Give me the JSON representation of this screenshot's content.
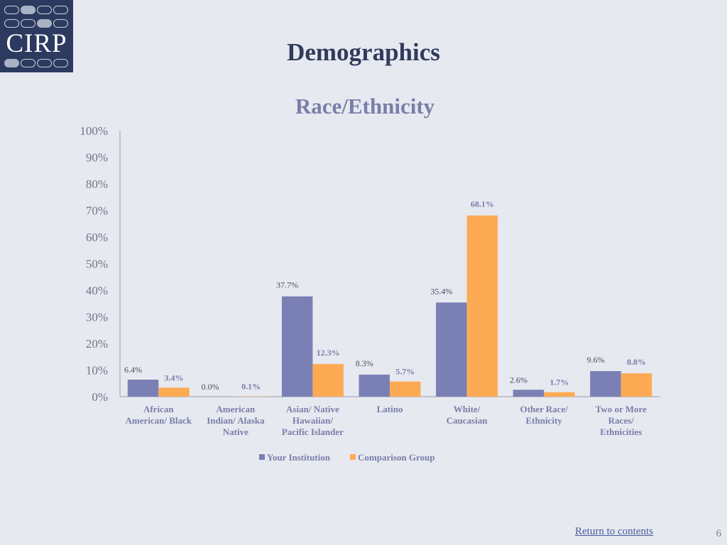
{
  "logo": {
    "text": "CIRP"
  },
  "page": {
    "title": "Demographics",
    "return_link": "Return to contents",
    "page_number": "6"
  },
  "colors": {
    "background": "#e6e9f0",
    "series_1": "#7a80b4",
    "series_2": "#fdaa55",
    "logo_bg": "#2b3a5e"
  },
  "chart_data": {
    "type": "bar",
    "title": "Race/Ethnicity",
    "xlabel": "",
    "ylabel": "",
    "ylim": [
      0,
      100
    ],
    "yticks": [
      "0%",
      "10%",
      "20%",
      "30%",
      "40%",
      "50%",
      "60%",
      "70%",
      "80%",
      "90%",
      "100%"
    ],
    "grid": false,
    "legend": "bottom",
    "categories": [
      [
        "African",
        "American/ Black"
      ],
      [
        "American",
        "Indian/ Alaska",
        "Native"
      ],
      [
        "Asian/ Native",
        "Hawaiian/",
        "Pacific Islander"
      ],
      [
        "Latino"
      ],
      [
        "White/",
        "Caucasian"
      ],
      [
        "Other Race/",
        "Ethnicity"
      ],
      [
        "Two or More",
        "Races/",
        "Ethnicities"
      ]
    ],
    "series": [
      {
        "name": "Your Institution",
        "color": "#7a80b4",
        "values": [
          6.4,
          0.0,
          37.7,
          8.3,
          35.4,
          2.6,
          9.6
        ],
        "labels": [
          "6.4%",
          "0.0%",
          "37.7%",
          "8.3%",
          "35.4%",
          "2.6%",
          "9.6%"
        ]
      },
      {
        "name": "Comparison Group",
        "color": "#fdaa55",
        "values": [
          3.4,
          0.1,
          12.3,
          5.7,
          68.1,
          1.7,
          8.8
        ],
        "labels": [
          "3.4%",
          "0.1%",
          "12.3%",
          "5.7%",
          "68.1%",
          "1.7%",
          "8.8%"
        ]
      }
    ]
  }
}
